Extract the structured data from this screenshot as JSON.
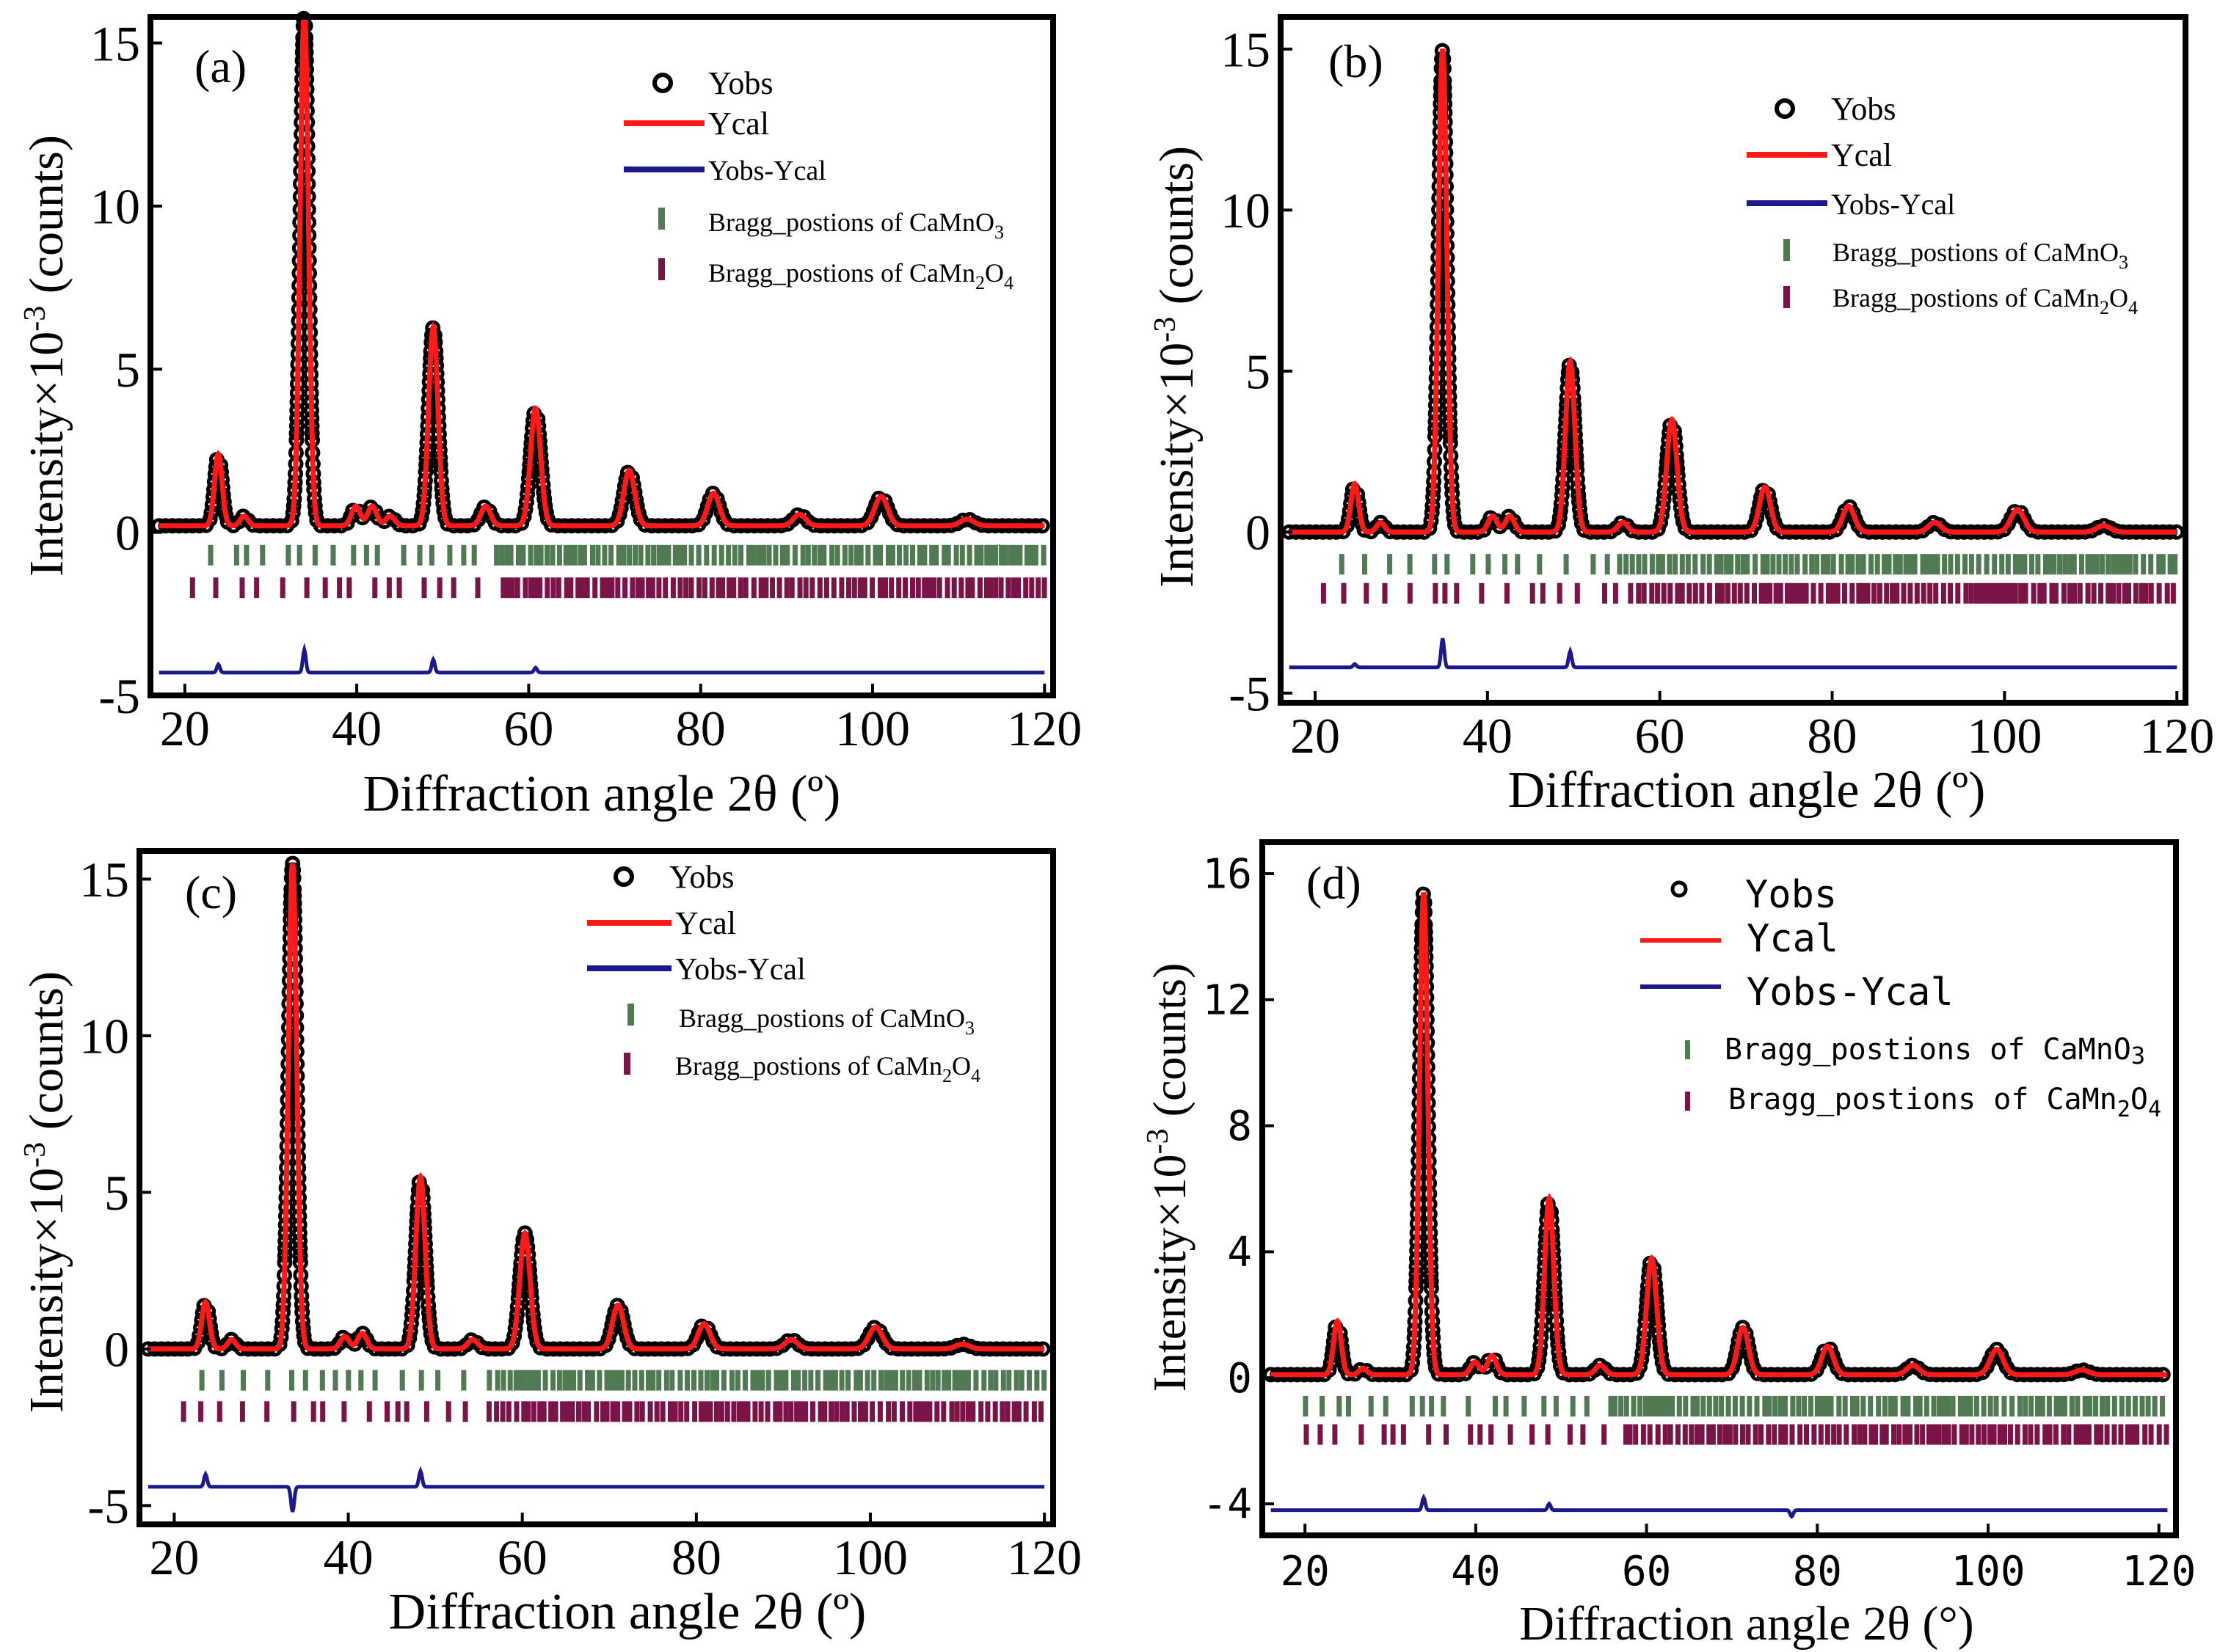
{
  "figure": {
    "colors": {
      "frame": "#000000",
      "yobs": "#000000",
      "ycal": "#ff1a1a",
      "diff": "#1a1a8c",
      "bragg1": "#4f7a52",
      "bragg2": "#7a1446"
    }
  },
  "chart_data": [
    {
      "type": "line",
      "panel": "(a)",
      "xlabel": "Diffraction angle 2θ (º)",
      "ylabel_main": "Intensity×10",
      "ylabel_exp": "-3",
      "ylabel_unit": " (counts)",
      "xlim": [
        16,
        121
      ],
      "ylim": [
        -5,
        15.8
      ],
      "xticks": [
        20,
        40,
        60,
        80,
        100,
        120
      ],
      "xtick_labels": [
        "20",
        "40",
        "60",
        "80",
        "100",
        "120"
      ],
      "yticks": [
        -5,
        0,
        5,
        10,
        15
      ],
      "ytick_labels": [
        "-5",
        "0",
        "5",
        "10",
        "15"
      ],
      "legend": {
        "yobs": "Yobs",
        "ycal": "Ycal",
        "diff": "Yobs-Ycal",
        "bragg1_text": "Bragg_postions of CaMnO",
        "bragg1_sub": "3",
        "bragg2_text": "Bragg_postions of CaMn",
        "bragg2_sub1": "2",
        "bragg2_mid": "O",
        "bragg2_sub2": "4"
      },
      "background": 0.2,
      "peaks": [
        [
          23.9,
          2.2
        ],
        [
          26.9,
          0.3
        ],
        [
          33.9,
          15.8
        ],
        [
          39.9,
          0.6
        ],
        [
          41.8,
          0.6
        ],
        [
          43.9,
          0.3
        ],
        [
          48.9,
          6.1
        ],
        [
          55.0,
          0.6
        ],
        [
          60.8,
          3.6
        ],
        [
          71.7,
          1.7
        ],
        [
          81.5,
          1.0
        ],
        [
          91.5,
          0.35
        ],
        [
          101.0,
          0.9
        ],
        [
          111.0,
          0.2
        ]
      ],
      "bragg_y": [
        -0.7,
        -1.7
      ],
      "diff_offset": -4.3,
      "diff_spikes": [
        [
          23.9,
          0.25
        ],
        [
          33.9,
          0.7
        ],
        [
          48.9,
          0.4
        ],
        [
          60.8,
          0.15
        ]
      ]
    },
    {
      "type": "line",
      "panel": "(b)",
      "xlabel": "Diffraction angle 2θ (º)",
      "ylabel_main": "Intensity×10",
      "ylabel_exp": "-3",
      "ylabel_unit": " (counts)",
      "xlim": [
        16,
        121
      ],
      "ylim": [
        -5.3,
        16
      ],
      "xticks": [
        20,
        40,
        60,
        80,
        100,
        120
      ],
      "xtick_labels": [
        "20",
        "40",
        "60",
        "80",
        "100",
        "120"
      ],
      "yticks": [
        -5,
        0,
        5,
        10,
        15
      ],
      "ytick_labels": [
        "-5",
        "0",
        "5",
        "10",
        "15"
      ],
      "legend": {
        "yobs": "Yobs",
        "ycal": "Ycal",
        "diff": "Yobs-Ycal",
        "bragg1_text": "Bragg_postions of CaMnO",
        "bragg1_sub": "3",
        "bragg2_text": "Bragg_postions of CaMn",
        "bragg2_sub1": "2",
        "bragg2_mid": "O",
        "bragg2_sub2": "4"
      },
      "background": 0.0,
      "peaks": [
        [
          24.6,
          1.5
        ],
        [
          27.6,
          0.3
        ],
        [
          34.8,
          15.0
        ],
        [
          40.6,
          0.5
        ],
        [
          42.6,
          0.5
        ],
        [
          49.6,
          5.3
        ],
        [
          55.7,
          0.3
        ],
        [
          61.4,
          3.5
        ],
        [
          72.2,
          1.4
        ],
        [
          81.9,
          0.8
        ],
        [
          91.9,
          0.3
        ],
        [
          101.5,
          0.7
        ],
        [
          111.5,
          0.2
        ]
      ],
      "bragg_y": [
        -1.0,
        -1.9
      ],
      "diff_offset": -4.2,
      "diff_spikes": [
        [
          34.8,
          0.9
        ],
        [
          49.6,
          0.5
        ],
        [
          24.6,
          0.1
        ]
      ]
    },
    {
      "type": "line",
      "panel": "(c)",
      "xlabel": "Diffraction angle 2θ (º)",
      "ylabel_main": "Intensity×10",
      "ylabel_exp": "-3",
      "ylabel_unit": " (counts)",
      "xlim": [
        16,
        121
      ],
      "ylim": [
        -5.6,
        15.9
      ],
      "xticks": [
        20,
        40,
        60,
        80,
        100,
        120
      ],
      "xtick_labels": [
        "20",
        "40",
        "60",
        "80",
        "100",
        "120"
      ],
      "yticks": [
        -5,
        0,
        5,
        10,
        15
      ],
      "ytick_labels": [
        "-5",
        "0",
        "5",
        "10",
        "15"
      ],
      "legend": {
        "yobs": "Yobs",
        "ycal": "Ycal",
        "diff": "Yobs-Ycal",
        "bragg1_text": "Bragg_postions of CaMnO",
        "bragg1_sub": "3",
        "bragg2_text": "Bragg_postions of CaMn",
        "bragg2_sub1": "2",
        "bragg2_mid": "O",
        "bragg2_sub2": "4"
      },
      "background": 0.0,
      "peaks": [
        [
          23.6,
          1.5
        ],
        [
          26.6,
          0.3
        ],
        [
          33.6,
          15.5
        ],
        [
          39.6,
          0.4
        ],
        [
          41.6,
          0.5
        ],
        [
          48.3,
          5.5
        ],
        [
          54.3,
          0.3
        ],
        [
          60.3,
          3.7
        ],
        [
          71.0,
          1.4
        ],
        [
          80.9,
          0.8
        ],
        [
          90.9,
          0.3
        ],
        [
          100.6,
          0.7
        ],
        [
          110.6,
          0.15
        ]
      ],
      "bragg_y": [
        -1.0,
        -2.0
      ],
      "diff_offset": -4.4,
      "diff_spikes": [
        [
          23.6,
          0.4
        ],
        [
          33.6,
          -0.8
        ],
        [
          48.3,
          0.5
        ]
      ]
    },
    {
      "type": "line",
      "panel": "(d)",
      "xlabel": "Diffraction angle 2θ (°)",
      "ylabel_main": "Intensity×10",
      "ylabel_exp": "-3",
      "ylabel_unit": " (counts)",
      "xlim": [
        15,
        122
      ],
      "ylim": [
        -5,
        17
      ],
      "xticks": [
        20,
        40,
        60,
        80,
        100,
        120
      ],
      "xtick_labels": [
        "20",
        "40",
        "60",
        "80",
        "100",
        "120"
      ],
      "yticks": [
        -4,
        0,
        4,
        8,
        12,
        16
      ],
      "ytick_labels": [
        "-4",
        "0",
        "4",
        "8",
        "12",
        "16"
      ],
      "legend": {
        "yobs": "Yobs",
        "ycal": "Ycal",
        "diff": "Yobs-Ycal",
        "bragg1_text": "Bragg_postions of CaMnO",
        "bragg1_sub": "3",
        "bragg2_text": "Bragg_postions of CaMn",
        "bragg2_sub1": "2",
        "bragg2_mid": "O",
        "bragg2_sub2": "4"
      },
      "background": 0.1,
      "peaks": [
        [
          23.8,
          1.7
        ],
        [
          26.8,
          0.2
        ],
        [
          33.9,
          15.3
        ],
        [
          39.9,
          0.4
        ],
        [
          41.9,
          0.6
        ],
        [
          48.6,
          5.6
        ],
        [
          54.6,
          0.3
        ],
        [
          60.6,
          3.7
        ],
        [
          71.3,
          1.5
        ],
        [
          81.2,
          0.9
        ],
        [
          91.2,
          0.3
        ],
        [
          101.0,
          0.8
        ],
        [
          111.0,
          0.15
        ]
      ],
      "bragg_y": [
        -0.9,
        -1.8
      ],
      "diff_offset": -4.2,
      "diff_spikes": [
        [
          33.9,
          0.4
        ],
        [
          48.6,
          0.2
        ],
        [
          77.0,
          -0.2
        ]
      ]
    }
  ]
}
